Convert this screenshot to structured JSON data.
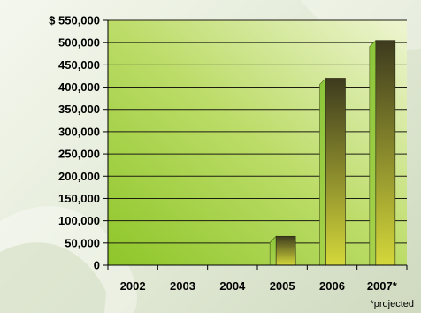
{
  "chart_data": {
    "type": "bar",
    "categories": [
      "2002",
      "2003",
      "2004",
      "2005",
      "2006",
      "2007*"
    ],
    "values": [
      0,
      0,
      0,
      65000,
      420000,
      505000
    ],
    "ylim": [
      0,
      550000
    ],
    "yticks": [
      0,
      50000,
      100000,
      150000,
      200000,
      250000,
      300000,
      350000,
      400000,
      450000,
      500000,
      550000
    ],
    "ytick_labels": [
      "0",
      "50,000",
      "100,000",
      "150,000",
      "200,000",
      "250,000",
      "300,000",
      "350,000",
      "400,000",
      "450,000",
      "500,000",
      "$ 550,000"
    ],
    "grid": true,
    "title": "",
    "xlabel": "",
    "ylabel": "",
    "colors": {
      "plot_light": "#eef5d2",
      "plot_mid": "#bcdc68",
      "plot_dark": "#8ec629",
      "bar_top": "#3d3a1e",
      "bar_bottom": "#d4d83a",
      "bar_side": "#8cc63a"
    }
  },
  "footnote": "*projected"
}
